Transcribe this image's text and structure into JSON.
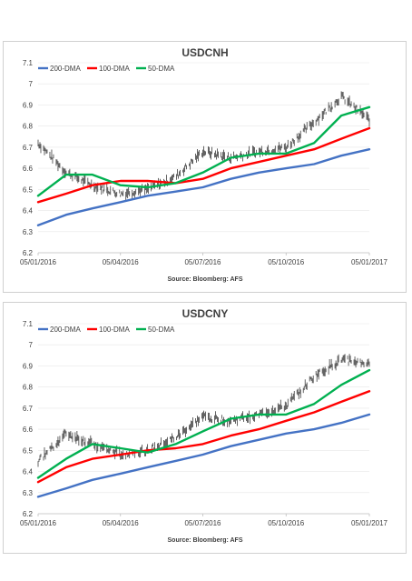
{
  "chart_data": [
    {
      "type": "line",
      "title": "USDCNH",
      "source": "Source: Bloomberg: AFS",
      "x_ticks": [
        "05/01/2016",
        "05/04/2016",
        "05/07/2016",
        "05/10/2016",
        "05/01/2017"
      ],
      "y_ticks": [
        "6.2",
        "6.3",
        "6.4",
        "6.5",
        "6.6",
        "6.7",
        "6.8",
        "6.9",
        "7",
        "7.1"
      ],
      "ylim": [
        6.2,
        7.1
      ],
      "grid": "horizontal",
      "legend": "top-left",
      "x_dates": [
        "2016-01-05",
        "2016-02-05",
        "2016-03-05",
        "2016-04-05",
        "2016-05-05",
        "2016-06-05",
        "2016-07-05",
        "2016-08-05",
        "2016-09-05",
        "2016-10-05",
        "2016-11-05",
        "2016-12-05",
        "2017-01-05"
      ],
      "price": [
        6.72,
        6.58,
        6.52,
        6.48,
        6.5,
        6.56,
        6.68,
        6.65,
        6.68,
        6.7,
        6.82,
        6.94,
        6.83
      ],
      "series": [
        {
          "name": "200-DMA",
          "color": "#4472c4",
          "values": [
            6.33,
            6.38,
            6.41,
            6.44,
            6.47,
            6.49,
            6.51,
            6.55,
            6.58,
            6.6,
            6.62,
            6.66,
            6.69
          ]
        },
        {
          "name": "100-DMA",
          "color": "#ff0000",
          "values": [
            6.44,
            6.48,
            6.52,
            6.54,
            6.54,
            6.53,
            6.55,
            6.6,
            6.63,
            6.66,
            6.69,
            6.74,
            6.79
          ]
        },
        {
          "name": "50-DMA",
          "color": "#00b050",
          "values": [
            6.47,
            6.57,
            6.57,
            6.52,
            6.51,
            6.53,
            6.58,
            6.65,
            6.67,
            6.67,
            6.72,
            6.85,
            6.89
          ]
        }
      ]
    },
    {
      "type": "line",
      "title": "USDCNY",
      "source": "Source: Bloomberg: AFS",
      "x_ticks": [
        "05/01/2016",
        "05/04/2016",
        "05/07/2016",
        "05/10/2016",
        "05/01/2017"
      ],
      "y_ticks": [
        "6.2",
        "6.3",
        "6.4",
        "6.5",
        "6.6",
        "6.7",
        "6.8",
        "6.9",
        "7",
        "7.1"
      ],
      "ylim": [
        6.2,
        7.1
      ],
      "grid": "horizontal",
      "legend": "top-left",
      "x_dates": [
        "2016-01-05",
        "2016-02-05",
        "2016-03-05",
        "2016-04-05",
        "2016-05-05",
        "2016-06-05",
        "2016-07-05",
        "2016-08-05",
        "2016-09-05",
        "2016-10-05",
        "2016-11-05",
        "2016-12-05",
        "2017-01-05"
      ],
      "price": [
        6.45,
        6.58,
        6.53,
        6.48,
        6.5,
        6.56,
        6.66,
        6.64,
        6.67,
        6.71,
        6.85,
        6.93,
        6.91
      ],
      "series": [
        {
          "name": "200-DMA",
          "color": "#4472c4",
          "values": [
            6.28,
            6.32,
            6.36,
            6.39,
            6.42,
            6.45,
            6.48,
            6.52,
            6.55,
            6.58,
            6.6,
            6.63,
            6.67
          ]
        },
        {
          "name": "100-DMA",
          "color": "#ff0000",
          "values": [
            6.35,
            6.42,
            6.46,
            6.48,
            6.5,
            6.51,
            6.53,
            6.57,
            6.6,
            6.64,
            6.68,
            6.73,
            6.78
          ]
        },
        {
          "name": "50-DMA",
          "color": "#00b050",
          "values": [
            6.37,
            6.46,
            6.53,
            6.51,
            6.49,
            6.53,
            6.59,
            6.65,
            6.67,
            6.67,
            6.72,
            6.81,
            6.88
          ]
        }
      ]
    }
  ]
}
